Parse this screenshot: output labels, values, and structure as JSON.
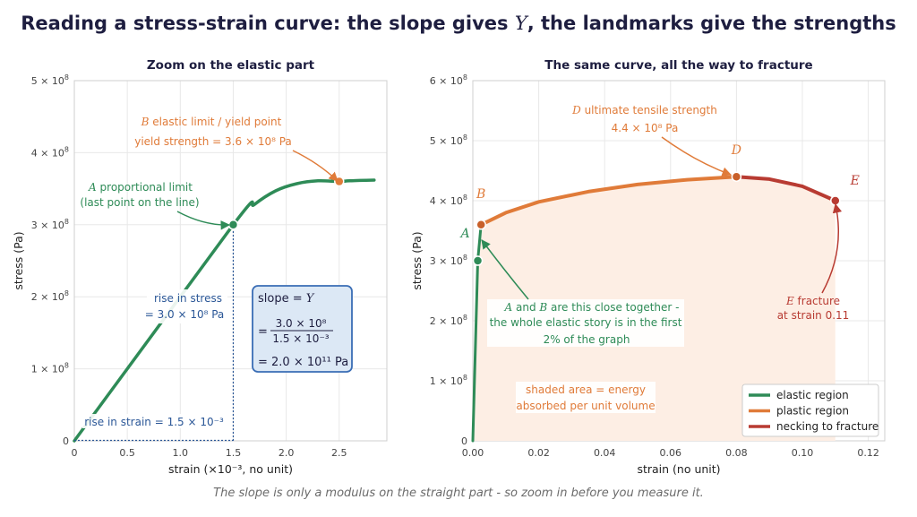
{
  "title_html": "Reading a stress-strain curve: the slope gives <i>Y</i>, the landmarks give the strengths",
  "caption": "The slope is only a modulus on the straight part - so zoom in before you measure it.",
  "colors": {
    "elastic": "#2e8b57",
    "plastic": "#e07b39",
    "necking": "#b83b32",
    "blue": "#2b5797",
    "box_fill": "#dce8f5",
    "box_stroke": "#3a6db5",
    "shade": "#fdeee4"
  },
  "chart_data": [
    {
      "type": "line",
      "title": "Zoom on the elastic part",
      "xlabel": "strain  (×10⁻³, no unit)",
      "ylabel": "stress  (Pa)",
      "xlim": [
        0,
        2.95
      ],
      "ylim": [
        0,
        5.0
      ],
      "y_unit": "×10⁸",
      "xticks": [
        "0",
        "0.5",
        "1.0",
        "1.5",
        "2.0",
        "2.5"
      ],
      "xtick_values": [
        0,
        0.5,
        1.0,
        1.5,
        2.0,
        2.5
      ],
      "ytick_values": [
        0,
        1,
        2,
        3,
        4,
        5
      ],
      "grid": true,
      "series": [
        {
          "values_x": [
            0,
            1.5,
            1.7,
            1.9,
            2.1,
            2.3,
            2.5,
            2.6,
            2.83
          ],
          "values_y": [
            0,
            3.0,
            3.28,
            3.47,
            3.57,
            3.61,
            3.6,
            3.61,
            3.62
          ]
        }
      ],
      "points": [
        {
          "label": "A",
          "x": 1.5,
          "y": 3.0
        },
        {
          "label": "B",
          "x": 2.5,
          "y": 3.6
        }
      ],
      "annotations": {
        "B_line1": "elastic limit / yield point",
        "B_line2": "yield strength  = 3.6 × 10⁸ Pa",
        "A_line1": "proportional limit",
        "A_line2": "(last point on the line)",
        "rise_stress_1": "rise in stress",
        "rise_stress_2": "= 3.0 × 10⁸ Pa",
        "rise_strain": "rise in strain  = 1.5 × 10⁻³",
        "slope_label": "slope  =",
        "slope_frac_num": "3.0 × 10⁸",
        "slope_frac_den": "1.5 × 10⁻³",
        "slope_result": "= 2.0 × 10¹¹ Pa",
        "slope_symbol": "Y"
      }
    },
    {
      "type": "line",
      "title": "The same curve, all the way to fracture",
      "xlabel": "strain  (no unit)",
      "ylabel": "stress  (Pa)",
      "xlim": [
        0,
        0.125
      ],
      "ylim": [
        0,
        6.0
      ],
      "y_unit": "×10⁸",
      "xticks": [
        "0.00",
        "0.02",
        "0.04",
        "0.06",
        "0.08",
        "0.10",
        "0.12"
      ],
      "xtick_values": [
        0,
        0.02,
        0.04,
        0.06,
        0.08,
        0.1,
        0.12
      ],
      "ytick_values": [
        0,
        1,
        2,
        3,
        4,
        5,
        6
      ],
      "grid": true,
      "legend_position": "bottom-right",
      "series": [
        {
          "name": "elastic region",
          "x": [
            0,
            0.0015,
            0.0025
          ],
          "y": [
            0,
            3.0,
            3.6
          ]
        },
        {
          "name": "plastic region",
          "x": [
            0.0025,
            0.01,
            0.02,
            0.035,
            0.05,
            0.065,
            0.08
          ],
          "y": [
            3.6,
            3.8,
            3.98,
            4.15,
            4.27,
            4.35,
            4.4
          ]
        },
        {
          "name": "necking to fracture",
          "x": [
            0.08,
            0.09,
            0.1,
            0.11
          ],
          "y": [
            4.4,
            4.36,
            4.24,
            4.0
          ]
        }
      ],
      "points": [
        {
          "label": "A",
          "x": 0.0015,
          "y": 3.0
        },
        {
          "label": "B",
          "x": 0.0025,
          "y": 3.6
        },
        {
          "label": "D",
          "x": 0.08,
          "y": 4.4
        },
        {
          "label": "E",
          "x": 0.11,
          "y": 4.0
        }
      ],
      "annotations": {
        "D_line1": "ultimate tensile strength",
        "D_line2": "4.4 × 10⁸ Pa",
        "E_line1": "fracture",
        "E_line2": "at strain 0.11",
        "AB_line1": "and",
        "AB_line1_tail": "are this close together -",
        "AB_line2": "the whole elastic story is in the first",
        "AB_line3": "2% of the graph",
        "shade_line1": "shaded area  =  energy",
        "shade_line2": "absorbed per unit volume"
      }
    }
  ]
}
